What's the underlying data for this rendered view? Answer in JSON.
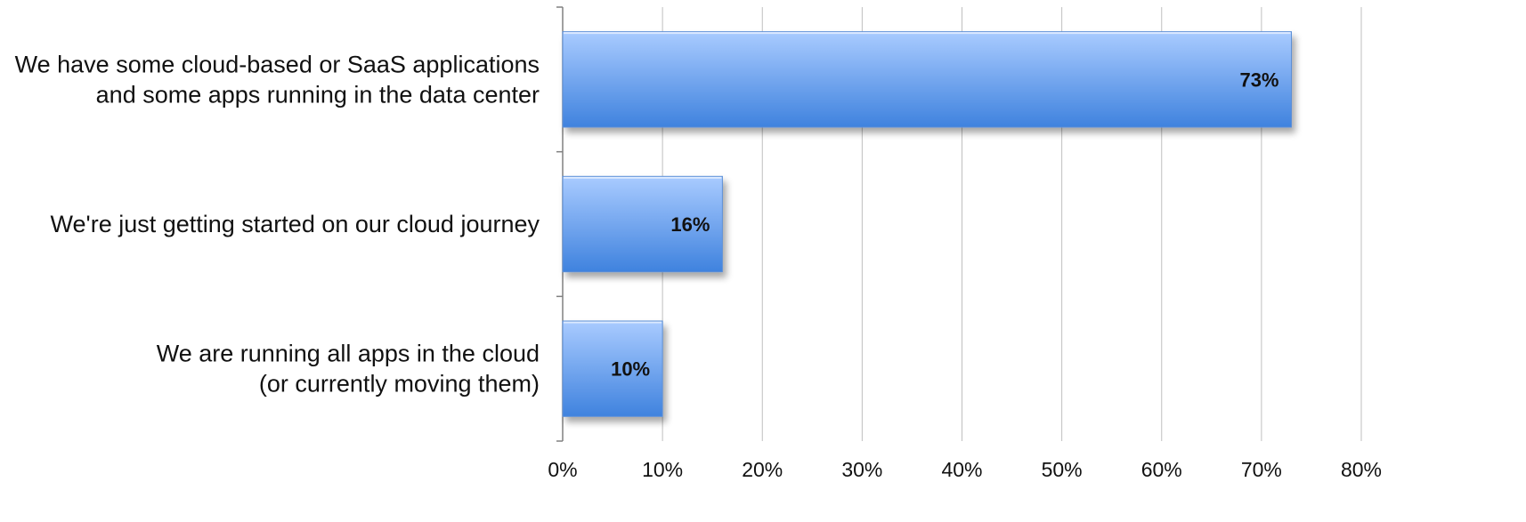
{
  "chart_data": {
    "type": "bar",
    "orientation": "horizontal",
    "title": "",
    "xlabel": "",
    "ylabel": "",
    "categories": [
      [
        "We have some cloud-based or SaaS applications",
        "and some apps running in the data center"
      ],
      [
        "We're just getting started on our cloud journey"
      ],
      [
        "We are running all apps in the cloud",
        "(or currently moving them)"
      ]
    ],
    "values": [
      73,
      16,
      10
    ],
    "data_labels": [
      "73%",
      "16%",
      "10%"
    ],
    "xlim": [
      0,
      80
    ],
    "ticks": [
      0,
      10,
      20,
      30,
      40,
      50,
      60,
      70,
      80
    ],
    "tick_labels": [
      "0%",
      "10%",
      "20%",
      "30%",
      "40%",
      "50%",
      "60%",
      "70%",
      "80%"
    ],
    "grid": "vertical",
    "legend": "none",
    "colors": {
      "bar_light": "#a9cbff",
      "bar_dark": "#3f82de",
      "grid": "#bfbfbf",
      "axis": "#808080"
    }
  }
}
